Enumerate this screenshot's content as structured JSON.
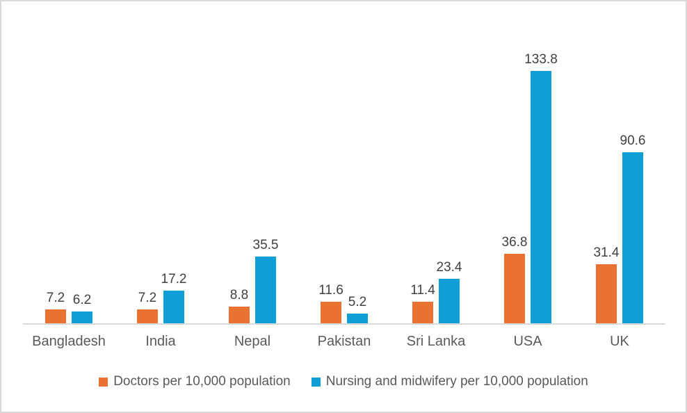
{
  "chart_data": {
    "type": "bar",
    "title": "",
    "categories": [
      "Bangladesh",
      "India",
      "Nepal",
      "Pakistan",
      "Sri Lanka",
      "USA",
      "UK"
    ],
    "series": [
      {
        "name": "Doctors per 10,000 population",
        "color": "#E97132",
        "values": [
          7.2,
          7.2,
          8.8,
          11.6,
          11.4,
          36.8,
          31.4
        ]
      },
      {
        "name": "Nursing and midwifery per 10,000 population",
        "color": "#0F9ED5",
        "values": [
          6.2,
          17.2,
          35.5,
          5.2,
          23.4,
          133.8,
          90.6
        ]
      }
    ],
    "value_labels": [
      "7.2",
      "7.2",
      "8.8",
      "11.6",
      "11.4",
      "36.8",
      "31.4",
      "6.2",
      "17.2",
      "35.5",
      "5.2",
      "23.4",
      "133.8",
      "90.6"
    ],
    "ylim": [
      0,
      140
    ],
    "grid": false,
    "legend_position": "bottom"
  },
  "colors": {
    "axis_line": "#D9D9D9",
    "frame_border": "#D9D9D9",
    "background": "#FFFFFF",
    "value_label_text": "#404040",
    "category_text": "#595959",
    "legend_text": "#595959"
  }
}
